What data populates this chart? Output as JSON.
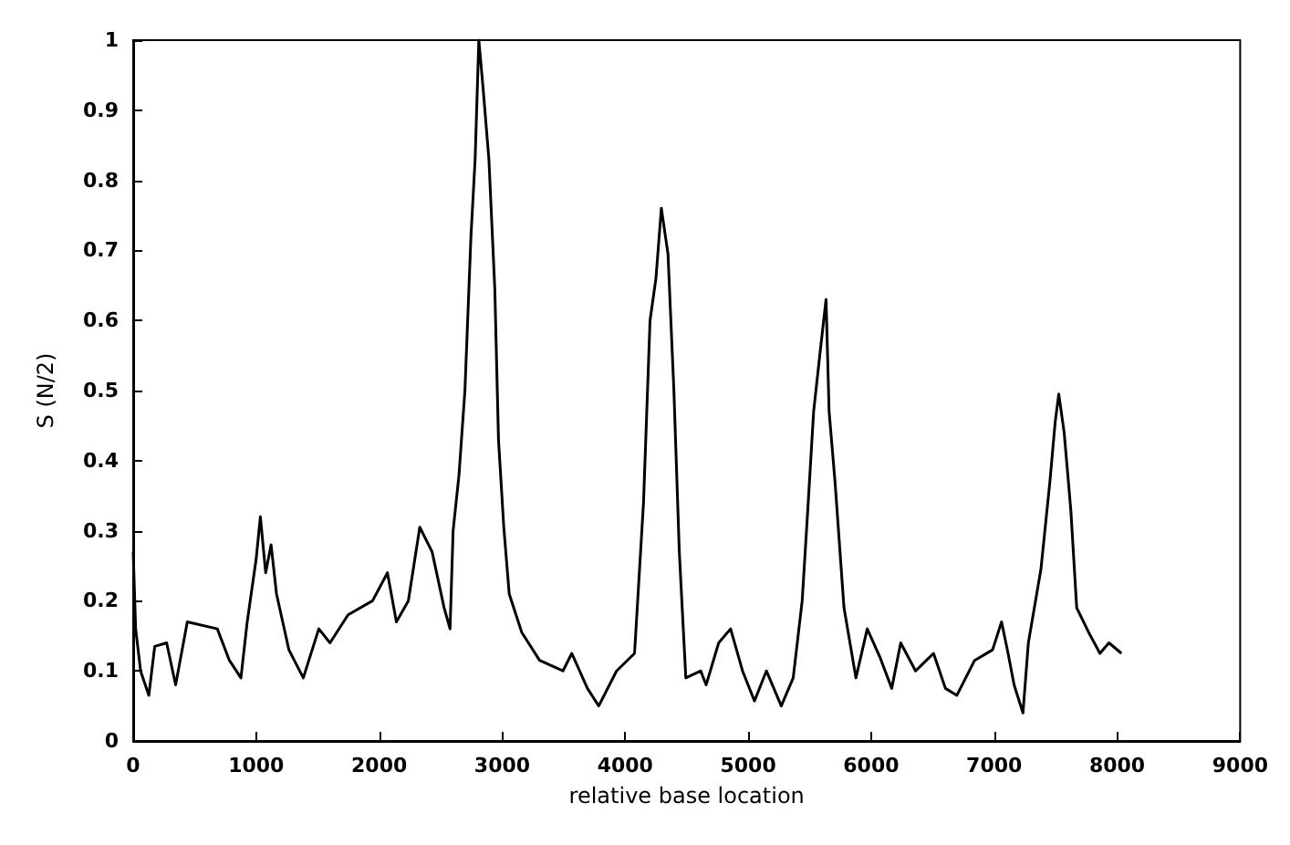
{
  "chart_data": {
    "type": "line",
    "xlabel": "relative base location",
    "ylabel": "S (N/2)",
    "xlim": [
      0,
      9000
    ],
    "xticks": [
      0,
      1000,
      2000,
      3000,
      4000,
      5000,
      6000,
      7000,
      8000,
      9000
    ],
    "ylim": [
      0,
      1
    ],
    "yticks": [
      0,
      0.1,
      0.2,
      0.3,
      0.4,
      0.5,
      0.6,
      0.7,
      0.8,
      0.9,
      1
    ],
    "grid": false,
    "marker": "none",
    "line_style": "solid",
    "series": [
      {
        "color": "#000000",
        "x": [
          0,
          20,
          60,
          127,
          175,
          272,
          345,
          440,
          684,
          782,
          876,
          927,
          1000,
          1034,
          1077,
          1121,
          1165,
          1266,
          1383,
          1509,
          1600,
          1747,
          1946,
          2067,
          2140,
          2237,
          2330,
          2430,
          2528,
          2576,
          2601,
          2649,
          2697,
          2746,
          2780,
          2810,
          2843,
          2892,
          2940,
          2970,
          3013,
          3057,
          3159,
          3304,
          3494,
          3566,
          3693,
          3785,
          3930,
          4076,
          4149,
          4202,
          4250,
          4294,
          4348,
          4396,
          4440,
          4493,
          4614,
          4658,
          4760,
          4857,
          4954,
          5051,
          5148,
          5269,
          5366,
          5439,
          5488,
          5532,
          5585,
          5633,
          5658,
          5706,
          5779,
          5876,
          5968,
          6070,
          6167,
          6240,
          6361,
          6507,
          6604,
          6696,
          6841,
          6987,
          7060,
          7113,
          7162,
          7234,
          7278,
          7380,
          7453,
          7496,
          7525,
          7569,
          7623,
          7671,
          7768,
          7860,
          7933,
          8035
        ],
        "values": [
          0.27,
          0.16,
          0.1,
          0.065,
          0.135,
          0.14,
          0.08,
          0.17,
          0.16,
          0.115,
          0.09,
          0.17,
          0.26,
          0.32,
          0.24,
          0.28,
          0.21,
          0.13,
          0.09,
          0.16,
          0.14,
          0.18,
          0.2,
          0.24,
          0.17,
          0.2,
          0.305,
          0.27,
          0.19,
          0.16,
          0.3,
          0.38,
          0.5,
          0.72,
          0.83,
          1.0,
          0.935,
          0.83,
          0.645,
          0.43,
          0.305,
          0.21,
          0.155,
          0.115,
          0.1,
          0.125,
          0.075,
          0.05,
          0.1,
          0.125,
          0.34,
          0.6,
          0.66,
          0.76,
          0.695,
          0.5,
          0.27,
          0.09,
          0.1,
          0.08,
          0.14,
          0.16,
          0.1,
          0.057,
          0.1,
          0.05,
          0.09,
          0.2,
          0.34,
          0.47,
          0.555,
          0.63,
          0.47,
          0.37,
          0.19,
          0.09,
          0.16,
          0.12,
          0.075,
          0.14,
          0.1,
          0.125,
          0.075,
          0.065,
          0.115,
          0.13,
          0.17,
          0.125,
          0.08,
          0.04,
          0.14,
          0.245,
          0.37,
          0.455,
          0.495,
          0.44,
          0.33,
          0.19,
          0.155,
          0.125,
          0.14,
          0.125
        ]
      }
    ]
  }
}
